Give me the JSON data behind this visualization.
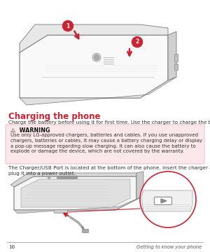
{
  "bg_color": "#ffffff",
  "page_number": "16",
  "footer_text": "Getting to know your phone",
  "title": "Charging the phone",
  "title_color": "#cc2233",
  "title_fontsize": 8.5,
  "body_text_1": "Charge the battery before using it for first time. Use the charger to charge the battery.",
  "body_fontsize": 5.2,
  "warning_box_color": "#fce8ea",
  "warning_box_edge": "#e8c0c5",
  "warning_title": "⚠  WARNING",
  "warning_title_fontsize": 5.8,
  "warning_body": "Use only LG-approved chargers, batteries and cables. If you use unapproved\nchargers, batteries or cables, it may cause a battery charging delay or display\na pop-up message regarding slow charging. It can also cause the battery to\nexplode or damage the device, which are not covered by the warranty.",
  "warning_body_fontsize": 5.0,
  "body_text_2": "The Charger/USB Port is located at the bottom of the phone. Insert the charger and\nplug it into a power outlet.",
  "footer_fontsize": 4.8,
  "page_num_fontsize": 5.2,
  "arrow_color": "#cc2233",
  "circle_color": "#cc2233",
  "phone_edge": "#888888",
  "phone_face": "#f8f8f8",
  "phone_inner": "#eeeeee"
}
